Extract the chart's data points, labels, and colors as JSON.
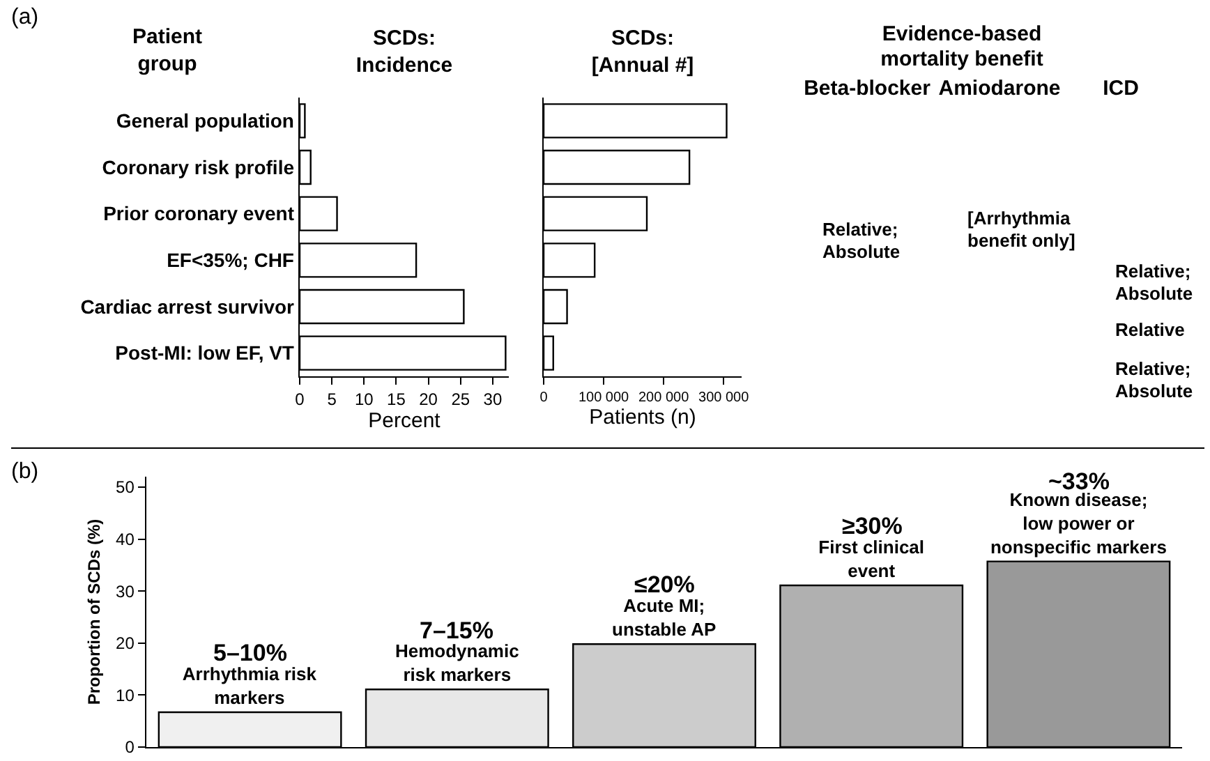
{
  "chart_data": [
    {
      "type": "bar",
      "orientation": "horizontal",
      "title": "SCDs:\nIncidence",
      "ylabel": "Patient\ngroup",
      "xlabel": "Percent",
      "annotations": [
        "(a)"
      ],
      "categories": [
        "General population",
        "Coronary risk profile",
        "Prior coronary event",
        "EF<35%; CHF",
        "Cardiac arrest survivor",
        "Post-MI: low EF, VT"
      ],
      "values": [
        0.8,
        1.7,
        5.8,
        18.1,
        25.5,
        32
      ],
      "color": "#ffffff",
      "xlim": [
        0,
        32.5
      ],
      "xticks": [
        0,
        5,
        10,
        15,
        20,
        25,
        30
      ]
    },
    {
      "type": "bar",
      "orientation": "horizontal",
      "title": "SCDs:\n[Annual #]",
      "xlabel": "Patients (n)",
      "tick_labels": "x",
      "categories": [
        null,
        null,
        null,
        null,
        null,
        null
      ],
      "values": [
        305000,
        243000,
        172000,
        85000,
        39000,
        16000
      ],
      "color": "#ffffff",
      "xlim": [
        0,
        330000
      ],
      "xticks": [
        0,
        {
          "value": 100000,
          "label": "100 000"
        },
        {
          "value": 200000,
          "label": "200 000"
        },
        {
          "value": 300000,
          "label": "300 000"
        }
      ]
    },
    {
      "type": "other",
      "title": "Evidence-based\nmortality benefit",
      "categories": [
        "Beta-blocker",
        "Amiodarone",
        "ICD"
      ],
      "annotations": [
        "Relative;\nAbsolute",
        "[Arrhythmia\nbenefit only]",
        "Relative;\nAbsolute",
        "Relative",
        "Relative;\nAbsolute"
      ]
    },
    {
      "type": "bar",
      "ylabel": "Proportion of SCDs (%)",
      "annotations": [
        "(b)",
        {
          "text": "5–10%",
          "x": "Arrhythmia risk\nmarkers",
          "y": 6.7
        },
        {
          "text": "7–15%",
          "x": "Hemodynamic\nrisk markers",
          "y": 11.1
        },
        {
          "text": "≤20%",
          "x": "Acute MI;\nunstable AP",
          "y": 19.8
        },
        {
          "text": "≥30%",
          "x": "First clinical\nevent",
          "y": 31.1
        },
        {
          "text": "~33%",
          "x": "Known disease;\nlow power or\nnonspecific markers",
          "y": 35.7
        }
      ],
      "categories": [
        "Arrhythmia risk\nmarkers",
        "Hemodynamic\nrisk markers",
        "Acute MI;\nunstable AP",
        "First clinical\nevent",
        "Known disease;\nlow power or\nnonspecific markers"
      ],
      "values": [
        6.7,
        11.1,
        19.8,
        31.1,
        35.7
      ],
      "colors": [
        "#f0f0f0",
        "#e8e8e8",
        "#cccccc",
        "#b0b0b0",
        "#999999"
      ],
      "ylim": [
        0,
        52
      ],
      "yticks": [
        0,
        10,
        20,
        30,
        40,
        50
      ]
    }
  ]
}
